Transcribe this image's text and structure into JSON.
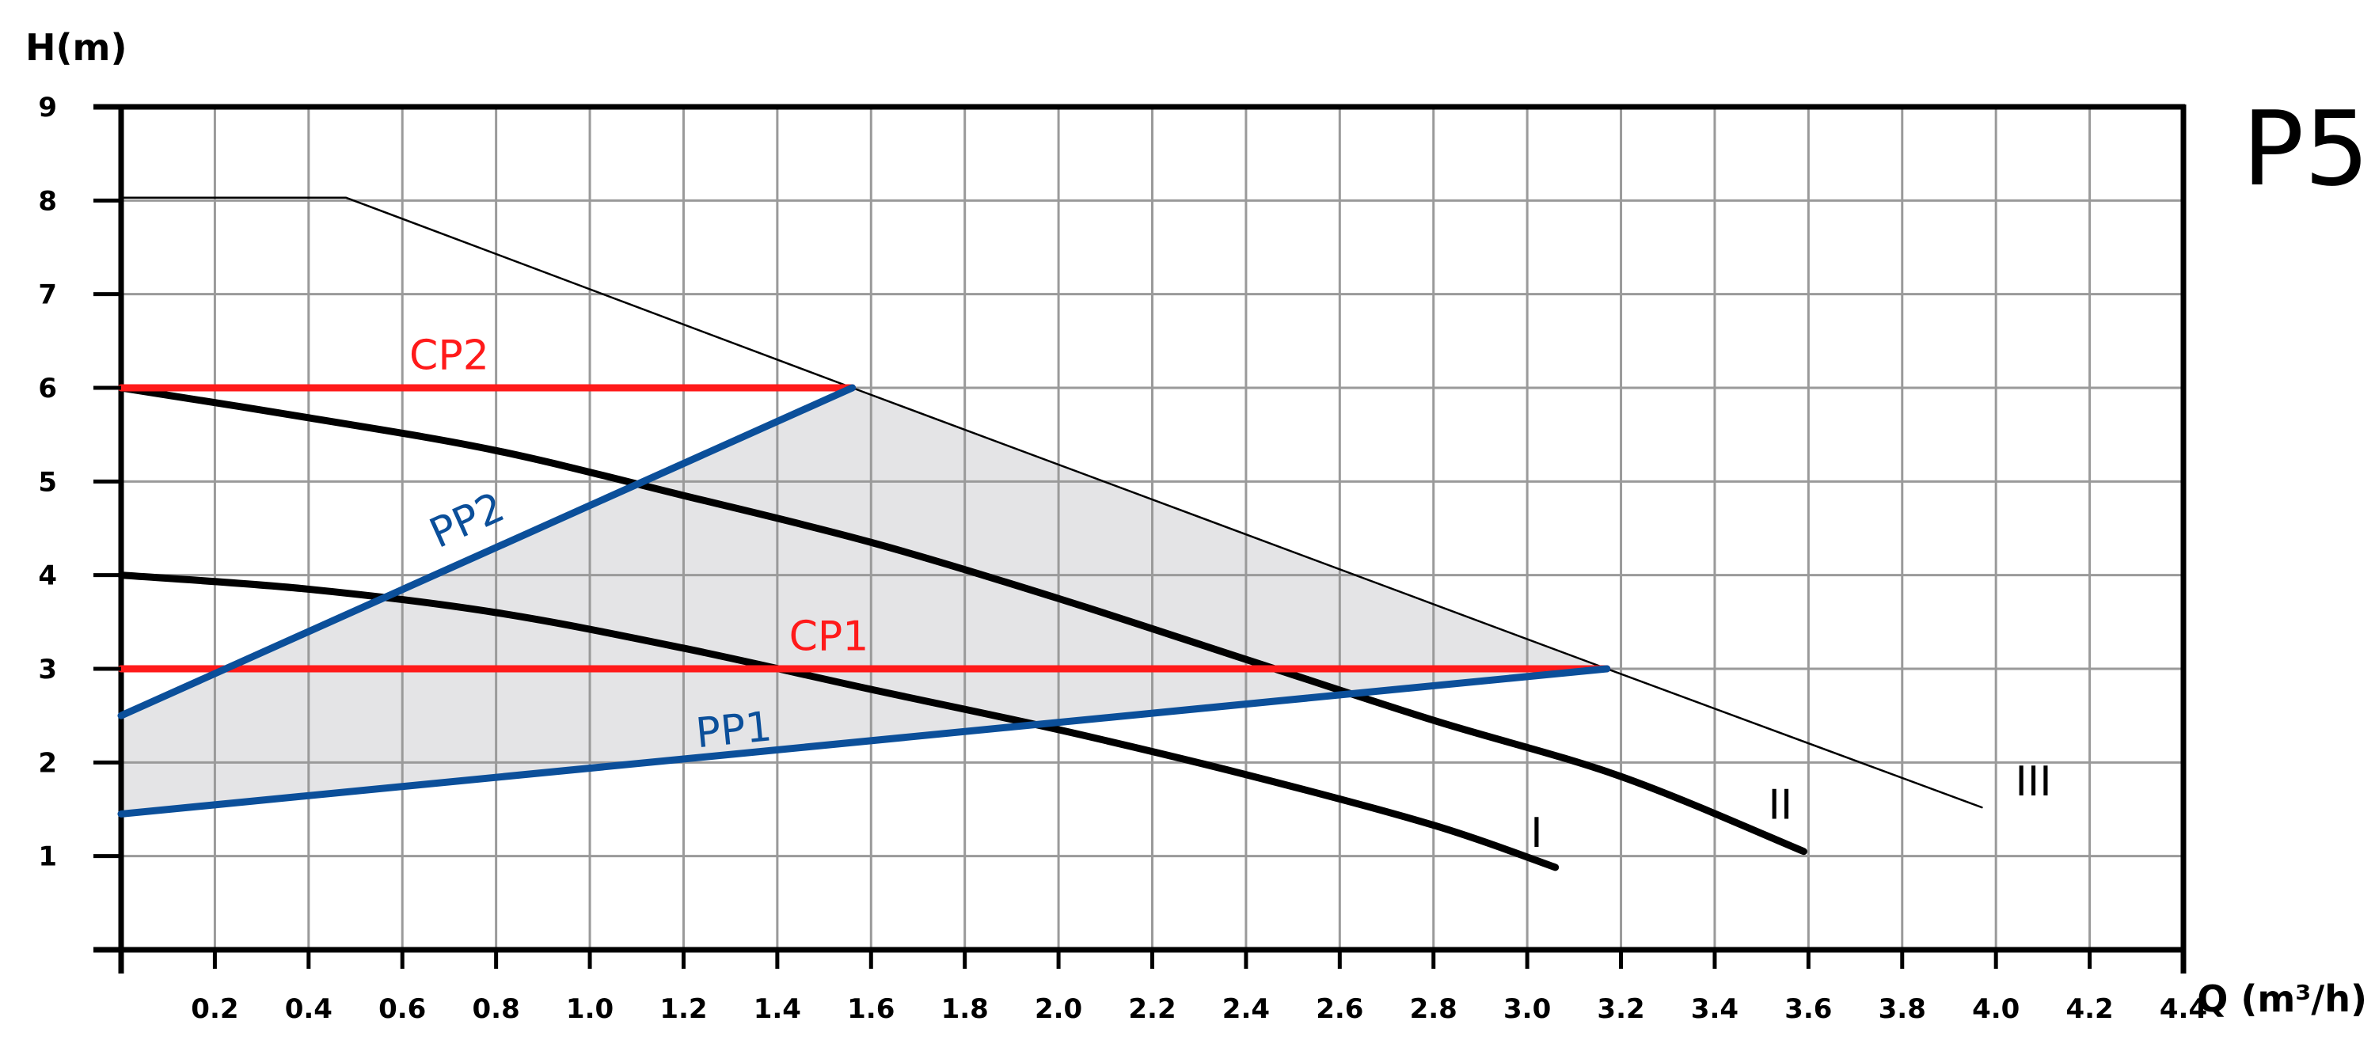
{
  "chart_data": {
    "type": "line",
    "model": "P5",
    "xlabel": "Q (m³/h)",
    "ylabel": "H(m)",
    "xlim": [
      0,
      4.4
    ],
    "ylim": [
      0,
      9
    ],
    "x_ticks": [
      0.2,
      0.4,
      0.6,
      0.8,
      1.0,
      1.2,
      1.4,
      1.6,
      1.8,
      2.0,
      2.2,
      2.4,
      2.6,
      2.8,
      3.0,
      3.2,
      3.4,
      3.6,
      3.8,
      4.0,
      4.2,
      4.4
    ],
    "x_tick_labels": [
      "0.2",
      "0.4",
      "0.6",
      "0.8",
      "1.0",
      "1.2",
      "1.4",
      "1.6",
      "1.8",
      "2.0",
      "2.2",
      "2.4",
      "2.6",
      "2.8",
      "3.0",
      "3.2",
      "3.4",
      "3.6",
      "3.8",
      "4.0",
      "4.2",
      "4.4"
    ],
    "y_ticks": [
      1,
      2,
      3,
      4,
      5,
      6,
      7,
      8,
      9
    ],
    "y_tick_labels": [
      "1",
      "2",
      "3",
      "4",
      "5",
      "6",
      "7",
      "8",
      "9"
    ],
    "grid": true,
    "colors": {
      "red": "#ff1a1a",
      "blue": "#0b4f9a",
      "black": "#000000",
      "grid": "#9a9a9a",
      "fill": "#e4e4e6"
    },
    "shaded_region": [
      [
        0,
        1.45
      ],
      [
        0,
        2.5
      ],
      [
        1.56,
        6.0
      ],
      [
        3.17,
        3.0
      ]
    ],
    "series": [
      {
        "name": "III",
        "color": "#000000",
        "style": "thin",
        "points": [
          [
            0,
            8.03
          ],
          [
            0.48,
            8.03
          ],
          [
            1.56,
            6.0
          ],
          [
            3.17,
            3.0
          ],
          [
            3.97,
            1.52
          ]
        ]
      },
      {
        "name": "I",
        "color": "#000000",
        "style": "thick",
        "points": [
          [
            0,
            4.0
          ],
          [
            0.4,
            3.85
          ],
          [
            0.8,
            3.6
          ],
          [
            1.2,
            3.22
          ],
          [
            1.6,
            2.78
          ],
          [
            2.0,
            2.35
          ],
          [
            2.4,
            1.87
          ],
          [
            2.8,
            1.33
          ],
          [
            3.06,
            0.88
          ]
        ]
      },
      {
        "name": "II",
        "color": "#000000",
        "style": "thick",
        "points": [
          [
            0,
            6.0
          ],
          [
            0.4,
            5.68
          ],
          [
            0.8,
            5.33
          ],
          [
            1.2,
            4.85
          ],
          [
            1.6,
            4.35
          ],
          [
            2.0,
            3.75
          ],
          [
            2.4,
            3.1
          ],
          [
            2.8,
            2.45
          ],
          [
            3.2,
            1.85
          ],
          [
            3.59,
            1.05
          ]
        ]
      },
      {
        "name": "CP2",
        "color": "#ff1a1a",
        "style": "thick",
        "points": [
          [
            0,
            6.0
          ],
          [
            1.56,
            6.0
          ]
        ]
      },
      {
        "name": "CP1",
        "color": "#ff1a1a",
        "style": "thick",
        "points": [
          [
            0,
            3.0
          ],
          [
            3.17,
            3.0
          ]
        ]
      },
      {
        "name": "PP2",
        "color": "#0b4f9a",
        "style": "thick",
        "points": [
          [
            0,
            2.5
          ],
          [
            1.56,
            6.0
          ]
        ]
      },
      {
        "name": "PP1",
        "color": "#0b4f9a",
        "style": "thick",
        "points": [
          [
            0,
            1.45
          ],
          [
            3.17,
            3.0
          ]
        ]
      }
    ],
    "annotations": [
      {
        "text": "CP2",
        "color": "#ff1a1a",
        "x": 0.7,
        "y": 6.2,
        "rotate": false
      },
      {
        "text": "CP1",
        "color": "#ff1a1a",
        "x": 1.51,
        "y": 3.2,
        "rotate": false
      },
      {
        "text": "PP2",
        "color": "#0b4f9a",
        "x": 0.75,
        "y": 4.45,
        "rotate": true
      },
      {
        "text": "PP1",
        "color": "#0b4f9a",
        "x": 1.31,
        "y": 2.2,
        "rotate": true
      },
      {
        "text": "I",
        "color": "#000000",
        "x": 3.02,
        "y": 1.1,
        "rotate": false
      },
      {
        "text": "II",
        "color": "#000000",
        "x": 3.54,
        "y": 1.4,
        "rotate": false
      },
      {
        "text": "III",
        "color": "#000000",
        "x": 4.08,
        "y": 1.65,
        "rotate": false
      }
    ]
  }
}
